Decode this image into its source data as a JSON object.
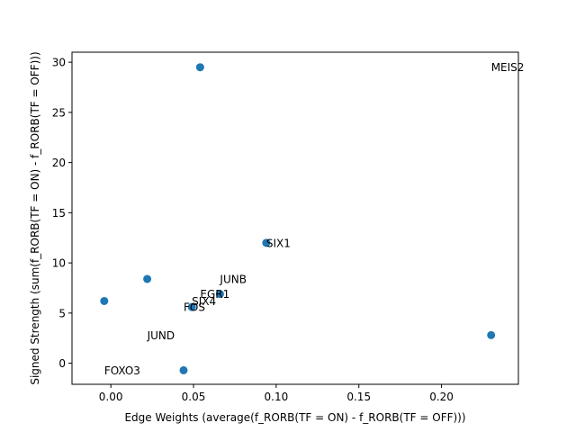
{
  "chart_data": {
    "type": "scatter",
    "xlabel": "Edge Weights (average(f_RORB(TF = ON) - f_RORB(TF = OFF)))",
    "ylabel": "Signed Strength (sum(f_RORB(TF = ON) - f_RORB(TF = OFF)))",
    "xlim": [
      -0.0235,
      0.2465
    ],
    "ylim": [
      -2.1,
      31.0
    ],
    "xticks": [
      0.0,
      0.05,
      0.1,
      0.15,
      0.2
    ],
    "xtick_labels": [
      "0.00",
      "0.05",
      "0.10",
      "0.15",
      "0.20"
    ],
    "yticks": [
      0,
      5,
      10,
      15,
      20,
      25,
      30
    ],
    "ytick_labels": [
      "0",
      "5",
      "10",
      "15",
      "20",
      "25",
      "30"
    ],
    "grid": false,
    "marker_color": "#1f77b4",
    "points": [
      {
        "x": 0.054,
        "y": 29.5
      },
      {
        "x": 0.094,
        "y": 12.0
      },
      {
        "x": 0.022,
        "y": 8.4
      },
      {
        "x": -0.004,
        "y": 6.2
      },
      {
        "x": 0.066,
        "y": 6.9
      },
      {
        "x": 0.049,
        "y": 5.6
      },
      {
        "x": 0.044,
        "y": -0.7
      },
      {
        "x": 0.23,
        "y": 2.8
      }
    ],
    "annotations": [
      {
        "text": "MEIS2",
        "x": 0.23,
        "y": 29.5
      },
      {
        "text": "SIX1",
        "x": 0.094,
        "y": 12.0
      },
      {
        "text": "JUNB",
        "x": 0.066,
        "y": 8.4
      },
      {
        "text": "EGR1",
        "x": 0.054,
        "y": 6.9
      },
      {
        "text": "SIX4",
        "x": 0.049,
        "y": 6.2
      },
      {
        "text": "FOS",
        "x": 0.044,
        "y": 5.6
      },
      {
        "text": "JUND",
        "x": 0.022,
        "y": 2.8
      },
      {
        "text": "FOXO3",
        "x": -0.004,
        "y": -0.7
      }
    ]
  }
}
